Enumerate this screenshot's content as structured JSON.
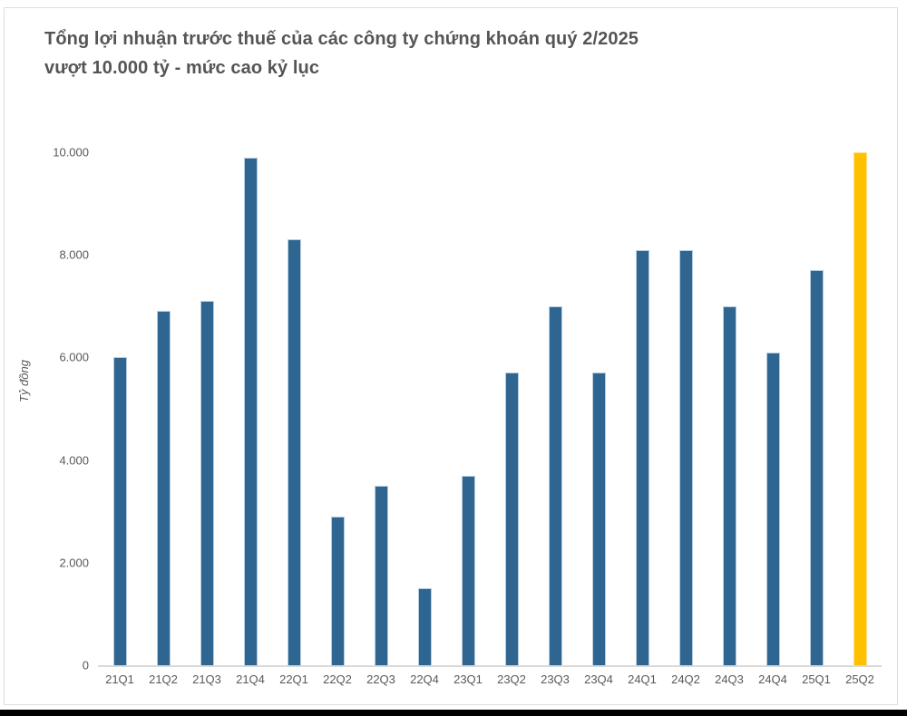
{
  "page": {
    "title_line1": "Tổng lợi nhuận trước thuế của các công ty chứng khoán quý 2/2025",
    "title_line2": "vượt 10.000 tỷ - mức cao kỷ lục"
  },
  "colors": {
    "title_text": "#555555",
    "axis_text": "#595959",
    "axis_line": "#d9d9d9",
    "bar_blue": "#2e6591",
    "bar_blue_border": "#b7cdde",
    "bar_highlight": "#ffc000",
    "bar_highlight_border": "#ffe08a",
    "bottom_strip": "#000000"
  },
  "chart_data": {
    "type": "bar",
    "title": "Tổng lợi nhuận trước thuế của các công ty chứng khoán quý 2/2025 vượt 10.000 tỷ - mức cao kỷ lục",
    "title_lines": [
      "Tổng lợi nhuận trước thuế của các công ty chứng khoán quý 2/2025",
      "vượt 10.000 tỷ - mức cao kỷ lục"
    ],
    "xlabel": "",
    "ylabel": "Tỷ đồng",
    "categories": [
      "21Q1",
      "21Q2",
      "21Q3",
      "21Q4",
      "22Q1",
      "22Q2",
      "22Q3",
      "22Q4",
      "23Q1",
      "23Q2",
      "23Q3",
      "23Q4",
      "24Q1",
      "24Q2",
      "24Q3",
      "24Q4",
      "25Q1",
      "25Q2"
    ],
    "values": [
      6000,
      6900,
      7100,
      9900,
      8300,
      2900,
      3500,
      1500,
      3700,
      5700,
      7000,
      5700,
      8100,
      8100,
      7000,
      6100,
      7700,
      10000
    ],
    "unit": "tỷ đồng",
    "highlight_index": 17,
    "highlight_category": "25Q2",
    "ylim": [
      0,
      10000
    ],
    "ytick_values": [
      0,
      2000,
      4000,
      6000,
      8000,
      10000
    ],
    "ytick_labels": [
      "0",
      "2.000",
      "4.000",
      "6.000",
      "8.000",
      "10.000"
    ],
    "grid": false,
    "legend": false
  }
}
